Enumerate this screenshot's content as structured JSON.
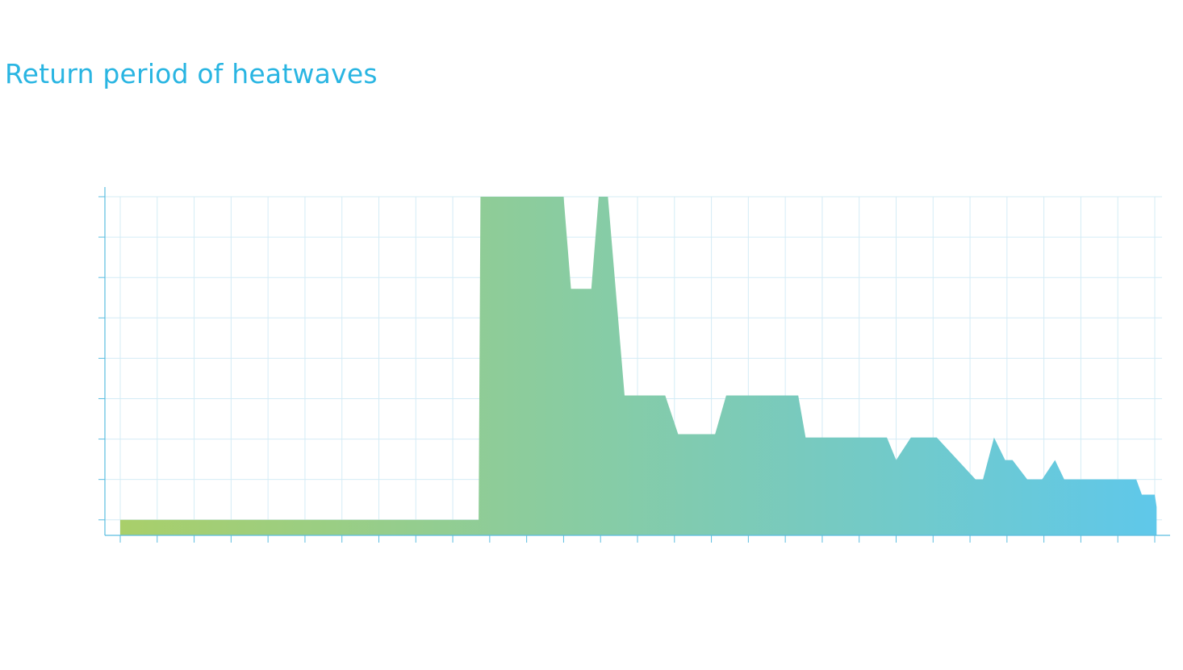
{
  "chart_data": {
    "type": "area",
    "title": "Return period of heatwaves",
    "xlabel": "",
    "ylabel": "",
    "x": [
      0,
      9.7,
      9.75,
      12,
      12.2,
      12.75,
      12.95,
      13.2,
      13.65,
      14.75,
      15.1,
      16.1,
      16.4,
      18.35,
      18.55,
      20.75,
      21.0,
      21.4,
      22.1,
      23.15,
      23.35,
      23.65,
      23.95,
      24.15,
      24.55,
      24.95,
      25.3,
      25.55,
      25.9,
      26.05,
      27.5,
      27.65,
      28.0,
      28.05
    ],
    "values": [
      0,
      0,
      100,
      100,
      71.5,
      71.5,
      100,
      100,
      38.5,
      38.5,
      26.5,
      26.5,
      38.5,
      38.5,
      25.5,
      25.5,
      18.5,
      25.5,
      25.5,
      12.5,
      12.5,
      25.5,
      18.5,
      18.5,
      12.5,
      12.5,
      18.5,
      12.5,
      12.5,
      12.5,
      12.5,
      7.8,
      7.8,
      4.0
    ],
    "xlim": [
      -0.45,
      28.15
    ],
    "ylim": [
      -4.8,
      100
    ],
    "x_ticks": [
      0,
      1,
      2,
      3,
      4,
      5,
      6,
      7,
      8,
      9,
      10,
      11,
      12,
      13,
      14,
      15,
      16,
      17,
      18,
      19,
      20,
      21,
      22,
      23,
      24,
      25,
      26,
      27,
      28
    ],
    "y_ticks": [
      0,
      12.5,
      25,
      37.5,
      50,
      62.5,
      75,
      87.5,
      100
    ],
    "grid": true,
    "colors": {
      "title": "#29b5e2",
      "axis": "#5bbde0",
      "grid": "#d4ecf6",
      "gradient_start": "#a9cf6a",
      "gradient_end": "#5fc8ea"
    }
  }
}
